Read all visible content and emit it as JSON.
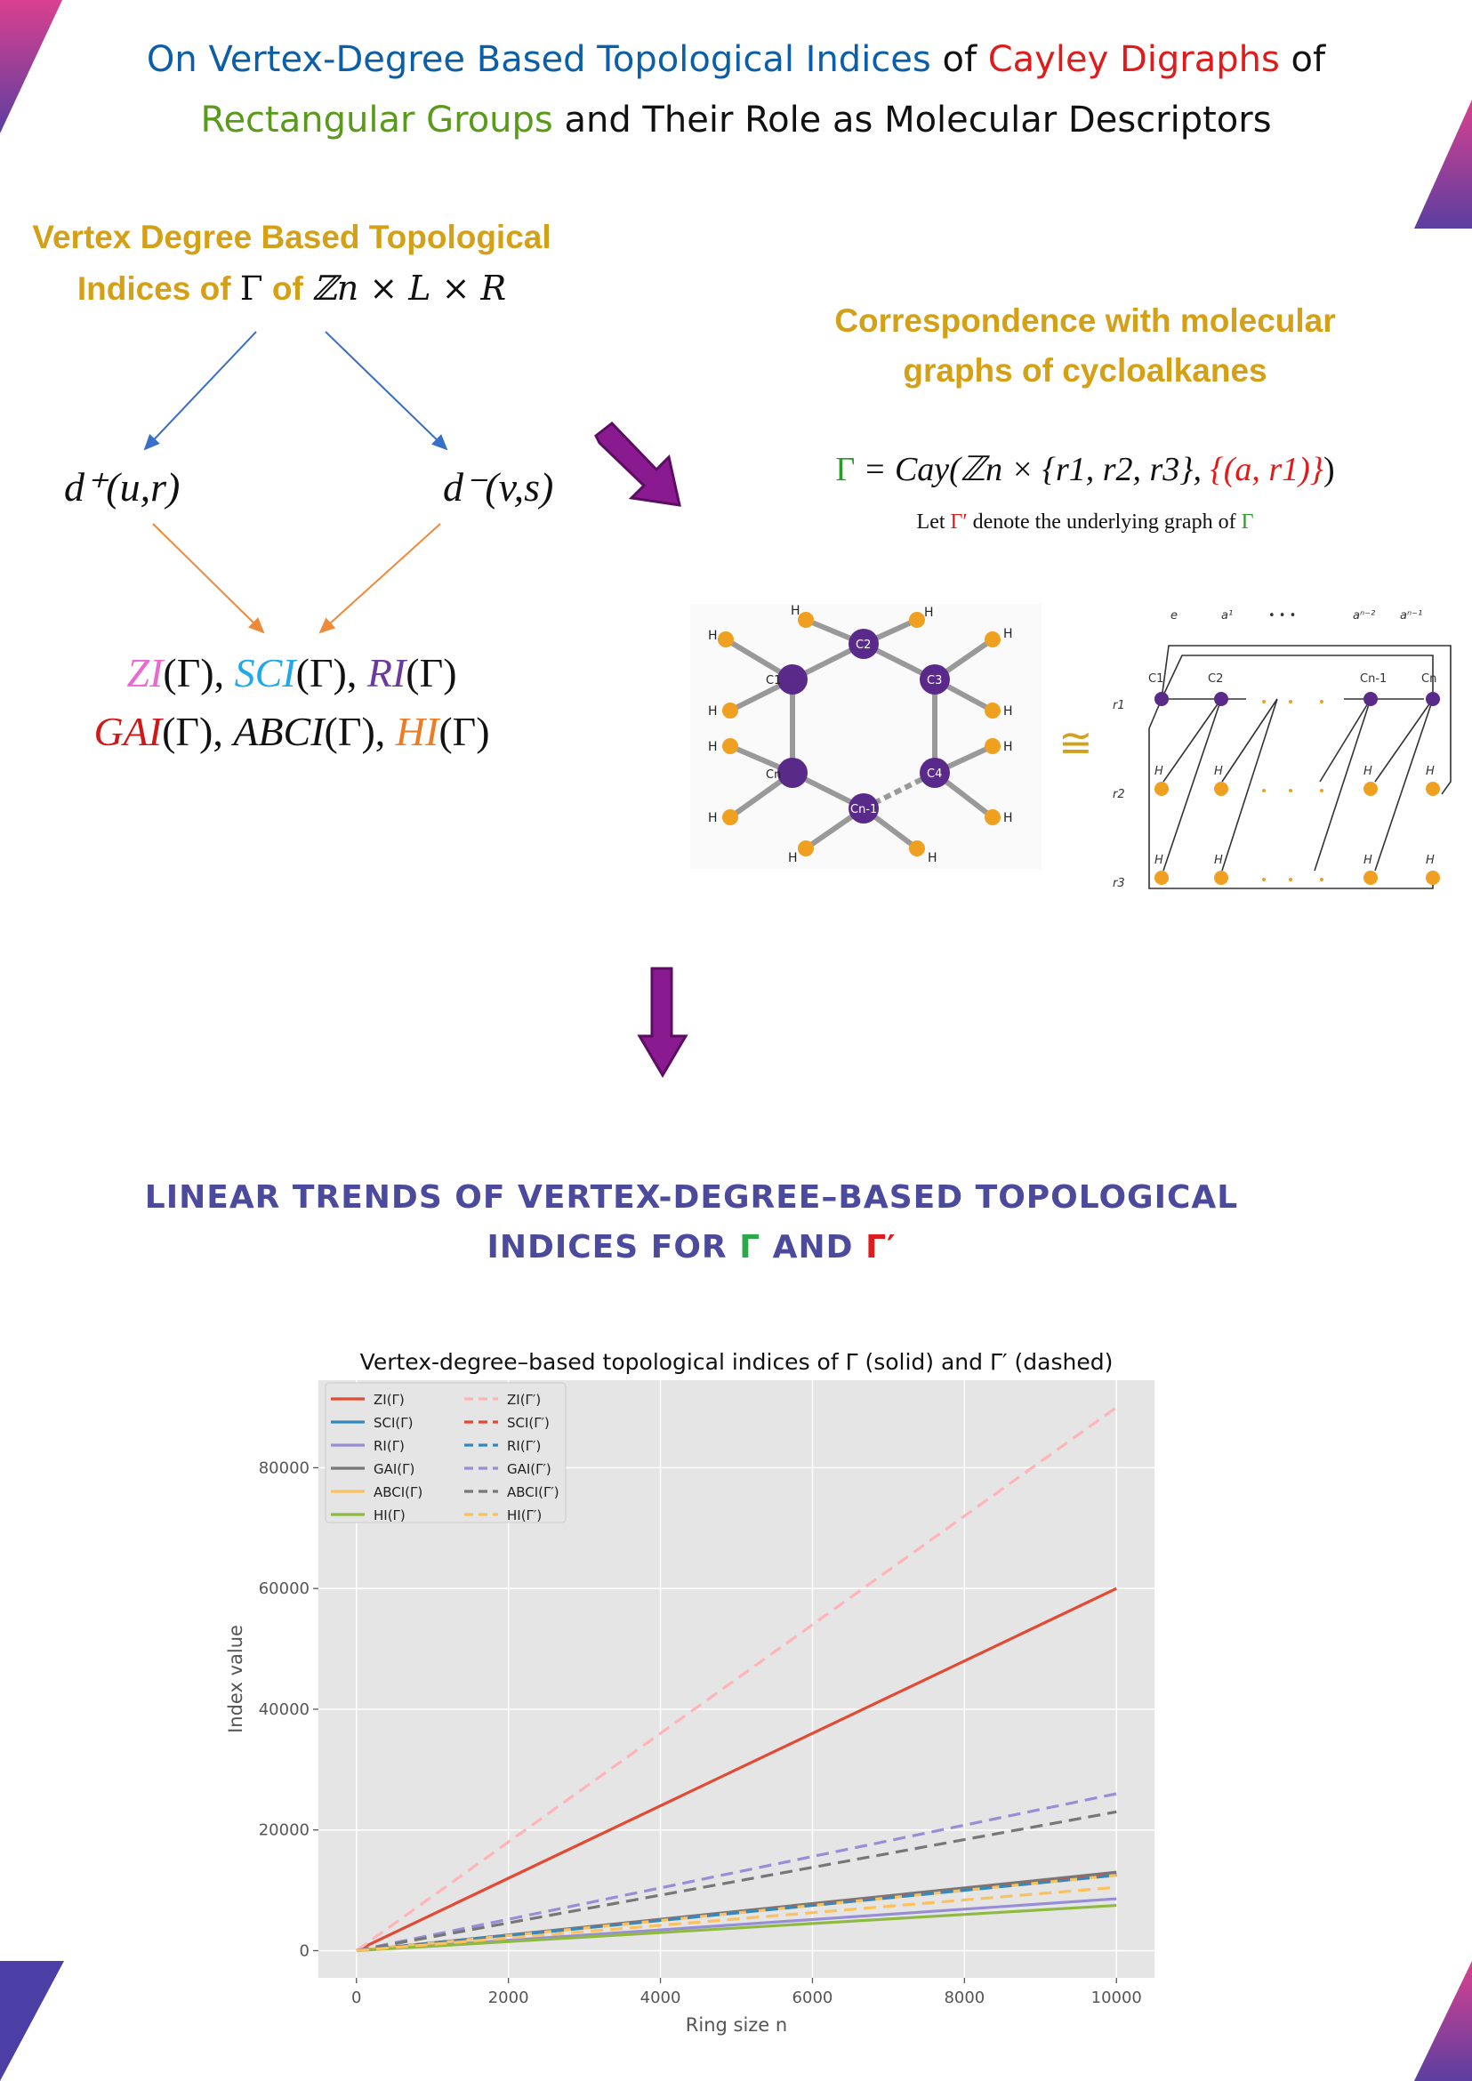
{
  "title": {
    "part1": "On Vertex-Degree Based Topological Indices",
    "part2": " of ",
    "part3": "Cayley Digraphs",
    "part4": " of",
    "part5": "Rectangular Groups",
    "part6": " and Their Role as Molecular Descriptors"
  },
  "left_panel": {
    "heading_line1": "Vertex Degree Based Topological",
    "heading_line2_a": "Indices of ",
    "heading_gamma": "Γ",
    "heading_line2_b": " of ",
    "group": "ℤn × L × R",
    "out_degree": "d⁺(u,r)",
    "in_degree": "d⁻(v,s)",
    "indices_row1": [
      {
        "name": "ZI",
        "suffix": "(Γ),",
        "color": "#e86ad0"
      },
      {
        "name": "SCI",
        "suffix": "(Γ),",
        "color": "#1fa9e8"
      },
      {
        "name": "RI",
        "suffix": "(Γ)",
        "color": "#6a3aa0"
      }
    ],
    "indices_row2": [
      {
        "name": "GAI",
        "suffix": "(Γ),",
        "color": "#d01818"
      },
      {
        "name": "ABCI",
        "suffix": "(Γ),",
        "color": "#111111"
      },
      {
        "name": "HI",
        "suffix": "(Γ)",
        "color": "#ee7a22"
      }
    ]
  },
  "right_panel": {
    "heading_line1": "Correspondence with molecular",
    "heading_line2": "graphs of cycloalkanes",
    "equation_gamma": "Γ",
    "equation_body": " = Cay(ℤn × {r1, r2, r3}, ",
    "equation_set": "{(a, r1)}",
    "equation_close": ")",
    "let_a": "Let ",
    "let_gamma_prime": "Γ′",
    "let_b": " denote the underlying graph of ",
    "let_gamma": "Γ",
    "isomorphic_symbol": "≅",
    "molecule_labels": {
      "h": "H",
      "c1": "C1",
      "c2": "C2",
      "c3": "C3",
      "c4": "C4",
      "cn": "Cn",
      "cn1": "Cn-1"
    },
    "graph_labels": {
      "cols": [
        "e",
        "a¹",
        "• • •",
        "aⁿ⁻²",
        "aⁿ⁻¹"
      ],
      "nodes": [
        "C1",
        "C2",
        "Cn-1",
        "Cn"
      ],
      "rows": [
        "r1",
        "r2",
        "r3"
      ],
      "h": "H"
    }
  },
  "section": {
    "heading_line1": "LINEAR TRENDS OF VERTEX-DEGREE–BASED TOPOLOGICAL",
    "heading_line2_a": "INDICES FOR ",
    "heading_gamma": "Γ",
    "heading_and": " AND ",
    "heading_gamma_prime": "Γ′"
  },
  "chart_data": {
    "type": "line",
    "title": "Vertex-degree–based topological indices of Γ (solid) and Γ′ (dashed)",
    "xlabel": "Ring size n",
    "ylabel": "Index value",
    "xlim": [
      -500,
      10500
    ],
    "ylim": [
      -4500,
      94500
    ],
    "xticks": [
      0,
      2000,
      4000,
      6000,
      8000,
      10000
    ],
    "yticks": [
      0,
      20000,
      40000,
      60000,
      80000
    ],
    "grid": true,
    "legend_position": "top-left",
    "x": [
      3,
      10000
    ],
    "series": [
      {
        "name": "ZI(Γ)",
        "style": "solid",
        "color": "#E24A33",
        "values": [
          18,
          60000
        ]
      },
      {
        "name": "SCI(Γ)",
        "style": "solid",
        "color": "#348ABD",
        "values": [
          4,
          12700
        ]
      },
      {
        "name": "RI(Γ)",
        "style": "solid",
        "color": "#988ED5",
        "values": [
          3,
          8600
        ]
      },
      {
        "name": "GAI(Γ)",
        "style": "solid",
        "color": "#777777",
        "values": [
          4,
          13000
        ]
      },
      {
        "name": "ABCI(Γ)",
        "style": "solid",
        "color": "#FBC15E",
        "values": [
          4,
          12500
        ]
      },
      {
        "name": "HI(Γ)",
        "style": "solid",
        "color": "#8EBA42",
        "values": [
          2,
          7500
        ]
      },
      {
        "name": "ZI(Γ′)",
        "style": "dashed",
        "color": "#FFB5B8",
        "values": [
          27,
          90000
        ]
      },
      {
        "name": "SCI(Γ′)",
        "style": "dashed",
        "color": "#E24A33",
        "values": [
          4,
          12600
        ]
      },
      {
        "name": "RI(Γ′)",
        "style": "dashed",
        "color": "#348ABD",
        "values": [
          4,
          12500
        ]
      },
      {
        "name": "GAI(Γ′)",
        "style": "dashed",
        "color": "#988ED5",
        "values": [
          8,
          26000
        ]
      },
      {
        "name": "ABCI(Γ′)",
        "style": "dashed",
        "color": "#777777",
        "values": [
          7,
          23000
        ]
      },
      {
        "name": "HI(Γ′)",
        "style": "dashed",
        "color": "#FBC15E",
        "values": [
          3,
          10500
        ]
      }
    ]
  },
  "colors": {
    "title_blue": "#0b5fa8",
    "title_red": "#e01b1b",
    "title_green": "#5a9a1a",
    "gold": "#d4a017",
    "section": "#4b4a9c",
    "arrow_purple": "#8a1a8f"
  }
}
